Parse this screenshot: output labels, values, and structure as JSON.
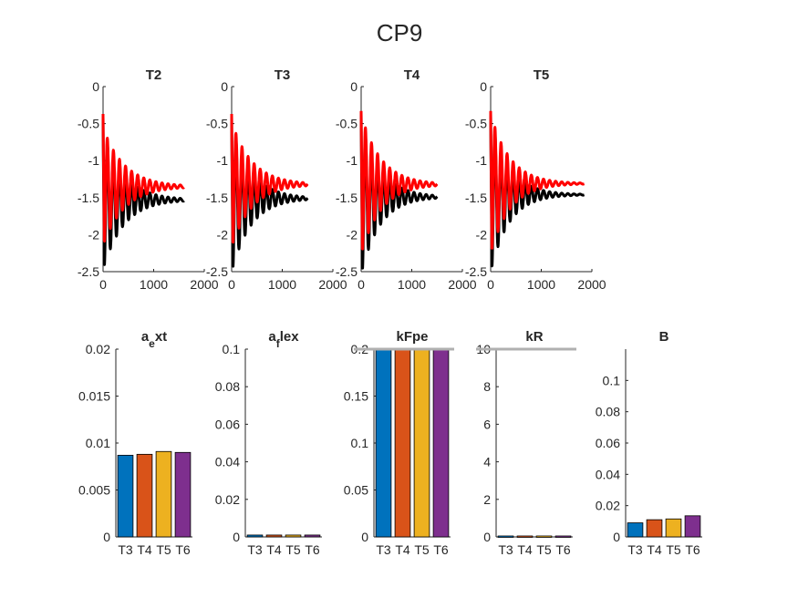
{
  "figure": {
    "title": "CP9"
  },
  "colors": {
    "bars": [
      "#0072BD",
      "#D95319",
      "#EDB120",
      "#7E2F8E"
    ],
    "measured": "#000000",
    "model": "#FF0000",
    "bound": "#B0B0B0",
    "axis": "#262626"
  },
  "chart_data": [
    {
      "type": "line",
      "title": "T2",
      "xlim": [
        0,
        2000
      ],
      "ylim": [
        -2.5,
        0
      ],
      "xticks": [
        "0",
        "1000",
        "2000"
      ],
      "yticks": [
        "0",
        "-0.5",
        "-1",
        "-1.5",
        "-2",
        "-2.5"
      ],
      "xmax": 1600,
      "period": 120,
      "series": [
        {
          "color": "black",
          "start": -0.4,
          "final": -1.53,
          "amplitude": 0.95,
          "decay": 400
        },
        {
          "color": "red",
          "start": -0.37,
          "final": -1.35,
          "amplitude": 0.8,
          "decay": 420
        }
      ]
    },
    {
      "type": "line",
      "title": "T3",
      "xlim": [
        0,
        2000
      ],
      "ylim": [
        -2.5,
        0
      ],
      "xticks": [
        "0",
        "1000",
        "2000"
      ],
      "yticks": [
        "0",
        "-0.5",
        "-1",
        "-1.5",
        "-2",
        "-2.5"
      ],
      "xmax": 1500,
      "period": 120,
      "series": [
        {
          "color": "black",
          "start": -0.4,
          "final": -1.51,
          "amplitude": 1.0,
          "decay": 380
        },
        {
          "color": "red",
          "start": -0.37,
          "final": -1.32,
          "amplitude": 0.85,
          "decay": 400
        }
      ]
    },
    {
      "type": "line",
      "title": "T4",
      "xlim": [
        0,
        2000
      ],
      "ylim": [
        -2.5,
        0
      ],
      "xticks": [
        "0",
        "1000",
        "2000"
      ],
      "yticks": [
        "0",
        "-0.5",
        "-1",
        "-1.5",
        "-2",
        "-2.5"
      ],
      "xmax": 1500,
      "period": 120,
      "series": [
        {
          "color": "black",
          "start": -0.35,
          "final": -1.49,
          "amplitude": 1.05,
          "decay": 370
        },
        {
          "color": "red",
          "start": -0.33,
          "final": -1.32,
          "amplitude": 0.95,
          "decay": 390
        }
      ]
    },
    {
      "type": "line",
      "title": "T5",
      "xlim": [
        0,
        2000
      ],
      "ylim": [
        -2.5,
        0
      ],
      "xticks": [
        "0",
        "1000",
        "2000"
      ],
      "yticks": [
        "0",
        "-0.5",
        "-1",
        "-1.5",
        "-2",
        "-2.5"
      ],
      "xmax": 1850,
      "period": 120,
      "series": [
        {
          "color": "black",
          "start": -0.35,
          "final": -1.46,
          "amplitude": 1.05,
          "decay": 360
        },
        {
          "color": "red",
          "start": -0.33,
          "final": -1.31,
          "amplitude": 0.95,
          "decay": 380
        }
      ]
    },
    {
      "type": "bar",
      "title_parts": [
        "a",
        "e",
        "xt"
      ],
      "categories": [
        "T3",
        "T4",
        "T5",
        "T6"
      ],
      "values": [
        0.0087,
        0.0088,
        0.0091,
        0.009
      ],
      "ylim": [
        0,
        0.02
      ],
      "yticks": [
        "0",
        "0.005",
        "0.01",
        "0.015",
        "0.02"
      ],
      "upper_bound": null
    },
    {
      "type": "bar",
      "title_parts": [
        "a",
        "f",
        "lex"
      ],
      "categories": [
        "T3",
        "T4",
        "T5",
        "T6"
      ],
      "values": [
        0.001,
        0.001,
        0.001,
        0.001
      ],
      "ylim": [
        0,
        0.1
      ],
      "yticks": [
        "0",
        "0.02",
        "0.04",
        "0.06",
        "0.08",
        "0.1"
      ],
      "upper_bound": null
    },
    {
      "type": "bar",
      "title": "kFpe",
      "categories": [
        "T3",
        "T4",
        "T5",
        "T6"
      ],
      "values": [
        0.2,
        0.2,
        0.2,
        0.2
      ],
      "ylim": [
        0,
        0.2
      ],
      "yticks": [
        "0",
        "0.05",
        "0.1",
        "0.15",
        "0.2"
      ],
      "upper_bound": 0.2
    },
    {
      "type": "bar",
      "title": "kR",
      "categories": [
        "T3",
        "T4",
        "T5",
        "T6"
      ],
      "values": [
        0.05,
        0.05,
        0.05,
        0.05
      ],
      "ylim": [
        0,
        10
      ],
      "yticks": [
        "0",
        "2",
        "4",
        "6",
        "8",
        "10"
      ],
      "upper_bound": 10
    },
    {
      "type": "bar",
      "title": "B",
      "categories": [
        "T3",
        "T4",
        "T5",
        "T6"
      ],
      "values": [
        0.009,
        0.011,
        0.0115,
        0.0135
      ],
      "ylim": [
        0,
        0.12
      ],
      "yticks": [
        "0",
        "0.02",
        "0.04",
        "0.06",
        "0.08",
        "0.1"
      ],
      "upper_bound": null
    }
  ]
}
